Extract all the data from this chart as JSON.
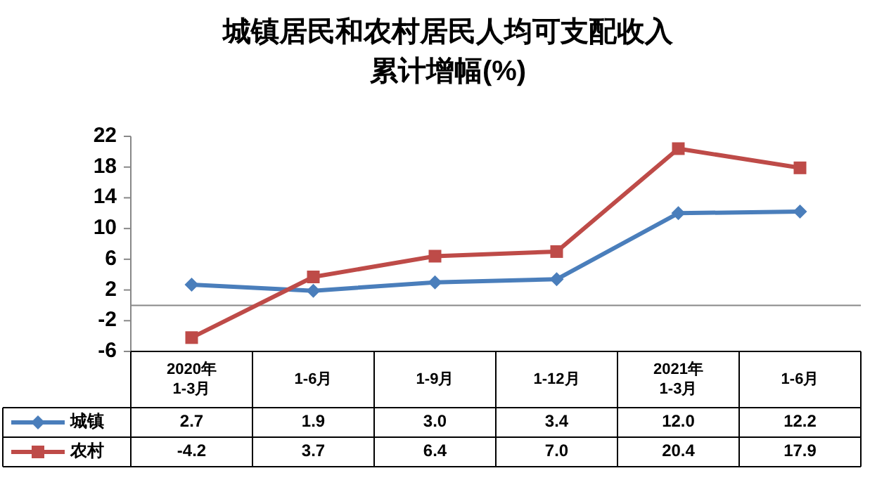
{
  "chart_data": {
    "type": "line",
    "title": "城镇居民和农村居民人均可支配收入",
    "subtitle": "累计增幅(%)",
    "categories": [
      "2020年\n1-3月",
      "1-6月",
      "1-9月",
      "1-12月",
      "2021年\n1-3月",
      "1-6月"
    ],
    "series": [
      {
        "name": "城镇",
        "color": "#4a7ebb",
        "marker": "diamond",
        "values": [
          2.7,
          1.9,
          3.0,
          3.4,
          12.0,
          12.2
        ],
        "value_labels": [
          "2.7",
          "1.9",
          "3.0",
          "3.4",
          "12.0",
          "12.2"
        ]
      },
      {
        "name": "农村",
        "color": "#be4b48",
        "marker": "square",
        "values": [
          -4.2,
          3.7,
          6.4,
          7.0,
          20.4,
          17.9
        ],
        "value_labels": [
          "-4.2",
          "3.7",
          "6.4",
          "7.0",
          "20.4",
          "17.9"
        ]
      }
    ],
    "ylim": [
      -6,
      22
    ],
    "yticks": [
      -6,
      -2,
      2,
      6,
      10,
      14,
      18,
      22
    ],
    "legend": "bottom",
    "grid": false
  }
}
